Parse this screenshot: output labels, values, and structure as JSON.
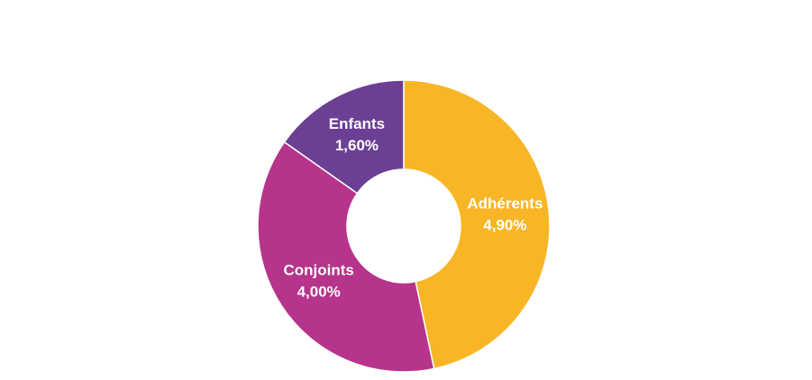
{
  "chart_data": {
    "type": "donut",
    "categories": [
      "Adhérents",
      "Conjoints",
      "Enfants"
    ],
    "values": [
      4.9,
      4.0,
      1.6
    ],
    "value_labels": [
      "4,90%",
      "4,00%",
      "1,60%"
    ],
    "colors": [
      "#f8b626",
      "#b6348b",
      "#6b3f93"
    ]
  }
}
